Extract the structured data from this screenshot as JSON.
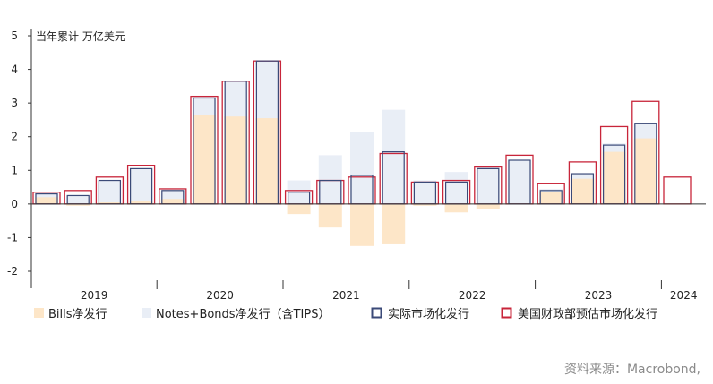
{
  "chart_data": {
    "type": "bar",
    "unit_label": "当年累计 万亿美元",
    "ylim": [
      -2,
      5
    ],
    "y_ticks": [
      5,
      4,
      3,
      2,
      1,
      0,
      -1,
      -2
    ],
    "year_labels": [
      "2019",
      "2020",
      "2021",
      "2022",
      "2023",
      "2024"
    ],
    "quarters_per_year": [
      4,
      4,
      4,
      4,
      4,
      1
    ],
    "colors": {
      "bills": "#fde6c8",
      "notes_bonds": "#e9eef6",
      "actual": "#3b4a78",
      "estimated": "#c8253a",
      "axis": "#333333"
    },
    "series": [
      {
        "name": "Bills净发行",
        "values": [
          0.2,
          -0.05,
          0.05,
          0.1,
          0.15,
          2.65,
          2.6,
          2.55,
          -0.3,
          -0.7,
          -1.25,
          -1.2,
          -0.05,
          -0.25,
          -0.15,
          0.0,
          0.35,
          0.75,
          1.55,
          1.95,
          null
        ]
      },
      {
        "name": "Notes+Bonds净发行（含TIPS）",
        "values": [
          0.3,
          0.25,
          0.7,
          1.05,
          0.45,
          3.2,
          3.65,
          4.25,
          0.7,
          1.45,
          2.15,
          2.8,
          0.7,
          0.95,
          1.1,
          1.3,
          0.45,
          0.9,
          1.8,
          2.4,
          null
        ]
      },
      {
        "name": "实际市场化发行",
        "values": [
          0.3,
          0.25,
          0.7,
          1.05,
          0.4,
          3.15,
          3.65,
          4.25,
          0.35,
          0.7,
          0.85,
          1.55,
          0.65,
          0.65,
          1.05,
          1.3,
          0.4,
          0.9,
          1.75,
          2.4,
          null
        ]
      },
      {
        "name": "美国财政部预估市场化发行",
        "values": [
          0.35,
          0.4,
          0.8,
          1.15,
          0.45,
          3.2,
          3.65,
          4.25,
          0.4,
          0.7,
          0.8,
          1.5,
          0.65,
          0.7,
          1.1,
          1.45,
          0.6,
          1.25,
          2.3,
          3.05,
          0.8
        ]
      }
    ]
  },
  "source_text": "资料来源：Macrobond,"
}
